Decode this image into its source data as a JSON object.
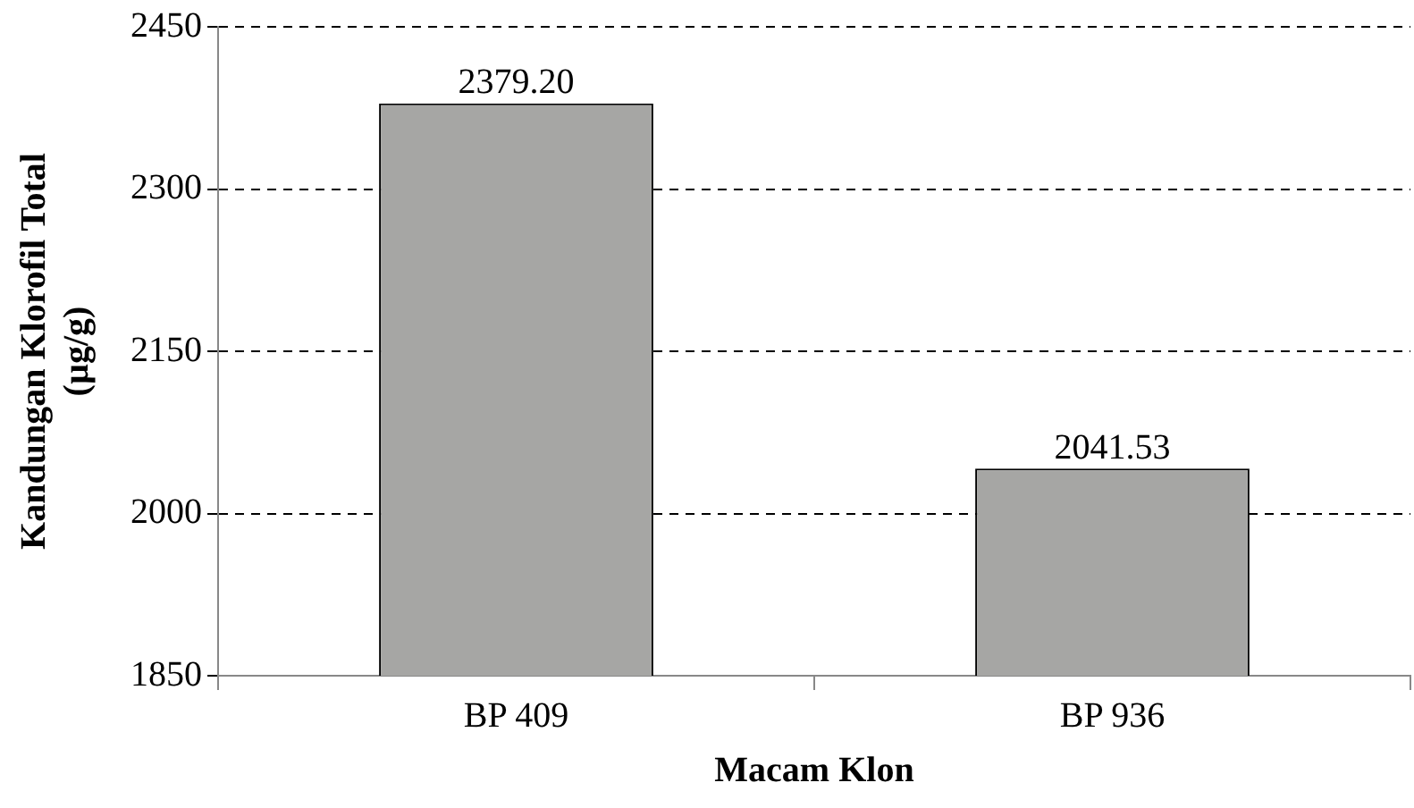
{
  "chart_data": {
    "type": "bar",
    "xlabel": "Macam Klon",
    "ylabel": "Kandungan Klorofil Total\n(µg/g)",
    "categories": [
      "BP 409",
      "BP 936"
    ],
    "values": [
      2379.2,
      2041.53
    ],
    "value_labels": [
      "2379.20",
      "2041.53"
    ],
    "color": "#a6a6a4",
    "ylim": [
      1850,
      2450
    ],
    "yticks": [
      1850,
      2000,
      2150,
      2300,
      2450
    ],
    "grid": "y",
    "legend": false
  }
}
